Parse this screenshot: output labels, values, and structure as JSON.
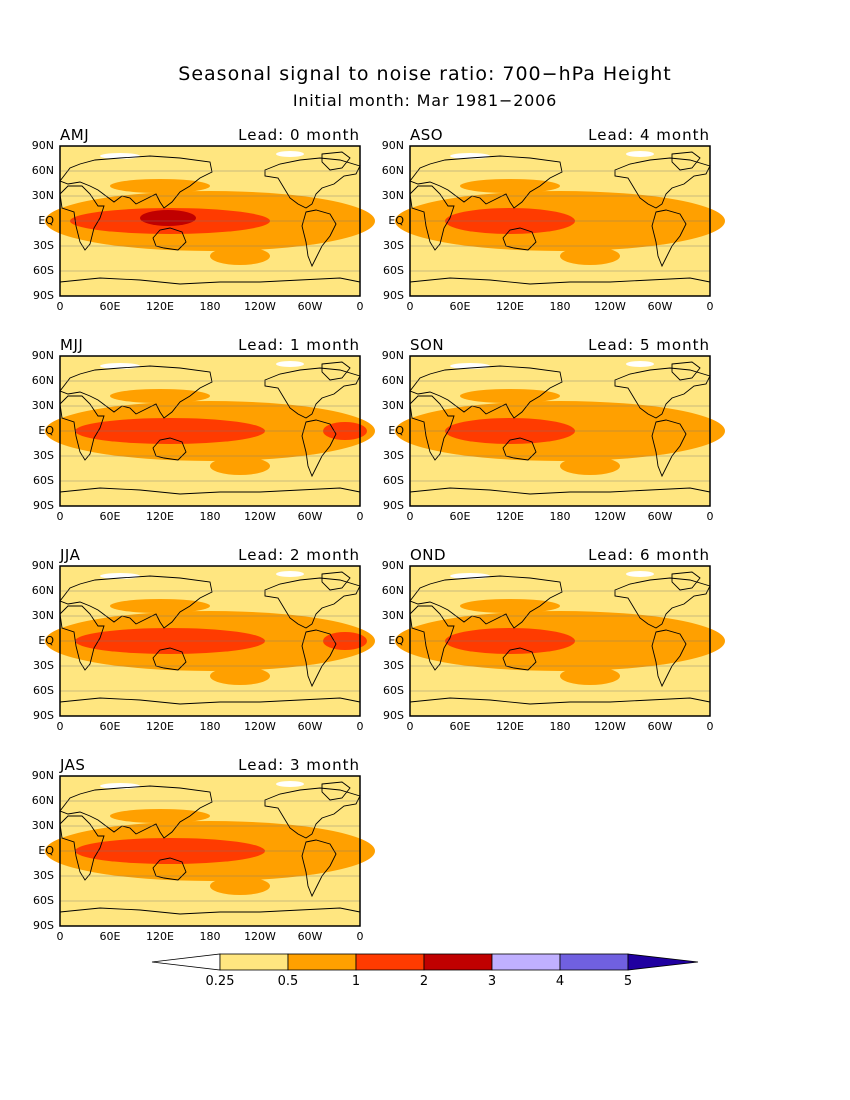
{
  "title": "Seasonal signal to noise ratio: 700−hPa Height",
  "subtitle": "Initial month: Mar 1981−2006",
  "lead_prefix": "Lead:",
  "lead_suffix": "month",
  "y_ticks": [
    "90N",
    "60N",
    "30N",
    "EQ",
    "30S",
    "60S",
    "90S"
  ],
  "x_ticks": [
    "0",
    "60E",
    "120E",
    "180",
    "120W",
    "60W",
    "0"
  ],
  "panels": [
    {
      "season": "AMJ",
      "lead": "Lead: 0 month",
      "lead_value": 0,
      "peak_level": "1-2 plus 2-3 over western Pacific"
    },
    {
      "season": "MJJ",
      "lead": "Lead: 1 month",
      "lead_value": 1,
      "peak_level": "1-2"
    },
    {
      "season": "JJA",
      "lead": "Lead: 2 month",
      "lead_value": 2,
      "peak_level": "1-2"
    },
    {
      "season": "JAS",
      "lead": "Lead: 3 month",
      "lead_value": 3,
      "peak_level": "1-2"
    },
    {
      "season": "ASO",
      "lead": "Lead: 4 month",
      "lead_value": 4,
      "peak_level": "1-2"
    },
    {
      "season": "SON",
      "lead": "Lead: 5 month",
      "lead_value": 5,
      "peak_level": "1-2"
    },
    {
      "season": "OND",
      "lead": "Lead: 6 month",
      "lead_value": 6,
      "peak_level": "1-2"
    }
  ],
  "colorbar": {
    "labels": [
      "0.25",
      "0.5",
      "1",
      "2",
      "3",
      "4",
      "5"
    ],
    "colors": [
      "#ffffff",
      "#ffe680",
      "#ffa000",
      "#ff3b00",
      "#c00000",
      "#c0b0ff",
      "#7060e0",
      "#2000a0"
    ]
  }
}
